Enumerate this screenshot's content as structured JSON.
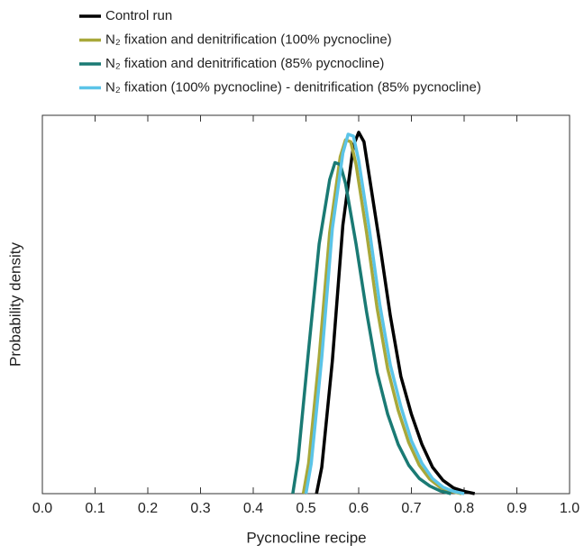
{
  "chart_data": {
    "type": "line",
    "xlabel": "Pycnocline recipe",
    "ylabel": "Probability density",
    "xlim": [
      0,
      1
    ],
    "ylim": [
      0,
      1
    ],
    "xticks": [
      {
        "value": 0,
        "label": "0.0"
      },
      0.1,
      0.2,
      0.3,
      0.4,
      0.5,
      0.6,
      0.7,
      0.8,
      0.9,
      {
        "value": 1,
        "label": "1.0"
      }
    ],
    "series": [
      {
        "name": "Control run",
        "color": "#000000",
        "x": [
          0.52,
          0.53,
          0.55,
          0.57,
          0.59,
          0.6,
          0.61,
          0.62,
          0.64,
          0.66,
          0.68,
          0.7,
          0.72,
          0.74,
          0.76,
          0.78,
          0.8,
          0.82
        ],
        "values": [
          0,
          0.07,
          0.35,
          0.71,
          0.92,
          0.955,
          0.93,
          0.84,
          0.66,
          0.47,
          0.31,
          0.21,
          0.13,
          0.07,
          0.035,
          0.015,
          0.006,
          0
        ]
      },
      {
        "name": "N₂ fixation and denitrification (100% pycnocline)",
        "color": "#a8a83a",
        "x": [
          0.495,
          0.505,
          0.525,
          0.545,
          0.565,
          0.575,
          0.585,
          0.595,
          0.615,
          0.635,
          0.655,
          0.675,
          0.695,
          0.715,
          0.735,
          0.755,
          0.775,
          0.795
        ],
        "values": [
          0,
          0.08,
          0.36,
          0.69,
          0.89,
          0.935,
          0.93,
          0.87,
          0.69,
          0.49,
          0.33,
          0.22,
          0.135,
          0.075,
          0.038,
          0.016,
          0.006,
          0
        ]
      },
      {
        "name": "N₂ fixation and denitrification (85% pycnocline)",
        "color": "#1a7a74",
        "x": [
          0.475,
          0.485,
          0.505,
          0.525,
          0.545,
          0.555,
          0.565,
          0.575,
          0.595,
          0.615,
          0.635,
          0.655,
          0.675,
          0.695,
          0.715,
          0.735,
          0.755,
          0.775
        ],
        "values": [
          0,
          0.09,
          0.38,
          0.66,
          0.83,
          0.875,
          0.87,
          0.82,
          0.66,
          0.48,
          0.32,
          0.21,
          0.13,
          0.075,
          0.04,
          0.02,
          0.007,
          0
        ]
      },
      {
        "name": "N₂ fixation (100% pycnocline) - denitrification (85% pycnocline)",
        "color": "#5bc4e8",
        "x": [
          0.5,
          0.51,
          0.53,
          0.55,
          0.57,
          0.58,
          0.59,
          0.6,
          0.62,
          0.64,
          0.66,
          0.68,
          0.7,
          0.72,
          0.74,
          0.76,
          0.78,
          0.8
        ],
        "values": [
          0,
          0.08,
          0.36,
          0.7,
          0.9,
          0.95,
          0.945,
          0.88,
          0.7,
          0.5,
          0.34,
          0.23,
          0.14,
          0.08,
          0.04,
          0.017,
          0.006,
          0
        ]
      }
    ]
  }
}
